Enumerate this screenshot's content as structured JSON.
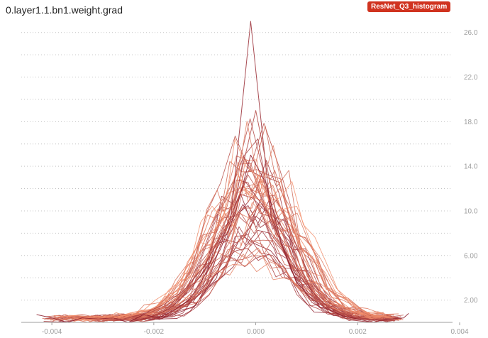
{
  "header": {
    "title": "0.layer1.1.bn1.weight.grad",
    "run_label": "ResNet_Q3_histogram",
    "run_color": "#d0331f"
  },
  "chart_data": {
    "type": "line",
    "title": "0.layer1.1.bn1.weight.grad",
    "xlabel": "",
    "ylabel": "",
    "xlim": [
      -0.0046,
      0.004
    ],
    "ylim": [
      0,
      27
    ],
    "x_ticks": [
      -0.004,
      -0.002,
      0.0,
      0.002,
      0.004
    ],
    "x_tick_labels": [
      "-0.004",
      "-0.002",
      "0.000",
      "0.002",
      "0.004"
    ],
    "y_ticks": [
      2,
      6,
      10,
      14,
      18,
      22,
      26
    ],
    "y_tick_labels": [
      "2.00",
      "6.00",
      "10.0",
      "14.0",
      "18.0",
      "22.0",
      "26.0"
    ],
    "grid": true,
    "y_axis_side": "right",
    "color_dark": "#8c1c2c",
    "color_light": "#f5936e",
    "series_count": 48,
    "series": [
      {
        "x": [
          -0.0043,
          -0.004,
          -0.0037,
          -0.0034,
          -0.0031,
          -0.0028,
          -0.0025,
          -0.0022,
          -0.0019,
          -0.0016,
          -0.0013,
          -0.001,
          -0.0007,
          -0.0004,
          -0.0001,
          0.0002,
          0.0005,
          0.0008,
          0.0011,
          0.0014,
          0.0017,
          0.002,
          0.0023,
          0.0026,
          0.0029,
          0.003
        ],
        "values": [
          0.7,
          0.4,
          0.0,
          0.4,
          0.3,
          0.4,
          0.0,
          0.7,
          0.4,
          1.1,
          2.0,
          4.2,
          6.5,
          9.8,
          15.0,
          12.5,
          7.2,
          3.6,
          2.1,
          1.2,
          0.6,
          0.3,
          0.0,
          0.3,
          0.4,
          0.8
        ]
      },
      {
        "x": [
          -0.0025,
          -0.0021,
          -0.0017,
          -0.0013,
          -0.0009,
          -0.0005,
          -0.0001,
          0.0003,
          0.0007,
          0.0011,
          0.0015,
          0.0019,
          0.0023
        ],
        "values": [
          0.0,
          0.4,
          1.2,
          2.8,
          5.4,
          9.0,
          27.0,
          9.5,
          4.6,
          1.8,
          0.7,
          0.2,
          0.0
        ]
      },
      {
        "x": [
          -0.003,
          -0.0026,
          -0.0022,
          -0.0018,
          -0.0014,
          -0.001,
          -0.0006,
          -0.0002,
          0.0002,
          0.0006,
          0.001,
          0.0014,
          0.0018,
          0.0022,
          0.0026
        ],
        "values": [
          0.2,
          0.3,
          0.8,
          1.6,
          2.9,
          5.1,
          8.4,
          12.6,
          10.1,
          6.2,
          3.3,
          1.4,
          0.6,
          0.3,
          0.1
        ]
      },
      {
        "x": [
          -0.0028,
          -0.0024,
          -0.002,
          -0.0016,
          -0.0012,
          -0.0008,
          -0.0004,
          0.0,
          0.0004,
          0.0008,
          0.0012,
          0.0016,
          0.002,
          0.0024
        ],
        "values": [
          0.1,
          0.5,
          1.0,
          1.9,
          3.6,
          6.8,
          11.2,
          19.0,
          9.8,
          5.0,
          2.2,
          0.9,
          0.4,
          0.1
        ]
      }
    ]
  }
}
